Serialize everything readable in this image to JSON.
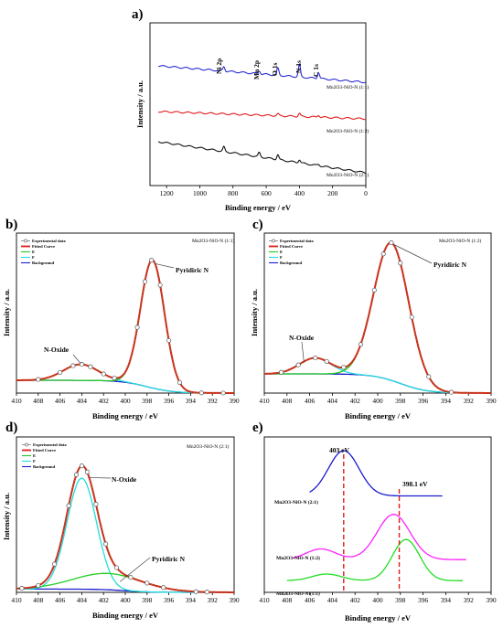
{
  "panels": [
    {
      "id": "a",
      "label": "a)",
      "xlabel": "Binding energy / eV",
      "ylabel": "Intensity / a.u.",
      "xlim": [
        1300,
        0
      ],
      "xticks": [
        1200,
        1000,
        800,
        600,
        400,
        200,
        0
      ],
      "annotations": [
        "Ni 2p",
        "Mn 2p",
        "O 1s",
        "N 1s",
        "C 1s"
      ],
      "series_labels": [
        "Mn2O3-NiO-N (1:1)",
        "Mn2O3-NiO-N (1:2)",
        "Mn2O3-NiO-N (2:1)"
      ],
      "colors": [
        "#2b2bd6",
        "#e01b1b",
        "#111111"
      ]
    },
    {
      "id": "b",
      "label": "b)",
      "title": "Mn2O3-NiO-N (1:1)",
      "xlabel": "Binding energy / eV",
      "ylabel": "Intensity / a.u.",
      "xlim": [
        410,
        390
      ],
      "xticks": [
        410,
        408,
        406,
        404,
        402,
        400,
        398,
        396,
        394,
        392,
        390
      ],
      "legend": [
        "Experimental data",
        "Fitted Curve",
        "E",
        "F",
        "Background"
      ],
      "annotations": [
        "N-Oxide",
        "Pyridiric N"
      ]
    },
    {
      "id": "c",
      "label": "c)",
      "title": "Mn2O3-NiO-N (1:2)",
      "xlabel": "Binding energy / eV",
      "ylabel": "Intensity / a.u.",
      "xlim": [
        410,
        390
      ],
      "xticks": [
        410,
        408,
        406,
        404,
        402,
        400,
        398,
        396,
        394,
        392,
        390
      ],
      "legend": [
        "Experimental data",
        "Fitted Curve",
        "E",
        "F",
        "Background"
      ],
      "annotations": [
        "N-Oxide",
        "Pyridiric N"
      ]
    },
    {
      "id": "d",
      "label": "d)",
      "title": "Mn2O3-NiO-N (2:1)",
      "xlabel": "Binding energy / eV",
      "ylabel": "Intensity / a.u.",
      "xlim": [
        410,
        390
      ],
      "xticks": [
        410,
        408,
        406,
        404,
        402,
        400,
        398,
        396,
        394,
        392,
        390
      ],
      "legend": [
        "Experimental data",
        "Fitted Curve",
        "E",
        "F",
        "Background"
      ],
      "annotations": [
        "N-Oxide",
        "Pyridiric N"
      ]
    },
    {
      "id": "e",
      "label": "e)",
      "xlabel": "Binding energy / eV",
      "xlim": [
        410,
        390
      ],
      "xticks": [
        410,
        408,
        406,
        404,
        402,
        400,
        398,
        396,
        394,
        392,
        390
      ],
      "annotations": [
        "403 eV",
        "398.1 eV"
      ],
      "series_labels": [
        "Mn2O3-NiO-N (2:1)",
        "Mn2O3-NiO-N (1:2)",
        "Mn2O3-NiO-N (1:1)"
      ],
      "colors": [
        "#1a1ad0",
        "#ff22ff",
        "#22dd22"
      ]
    }
  ],
  "chart_data": [
    {
      "type": "line",
      "panel": "a",
      "x_range": [
        1250,
        0
      ],
      "series": [
        {
          "name": "Mn2O3-NiO-N (1:1)",
          "peaks": [
            [
              855,
              0.35
            ],
            [
              642,
              0.25
            ],
            [
              530,
              0.55
            ],
            [
              400,
              1.0
            ],
            [
              285,
              0.5
            ]
          ]
        },
        {
          "name": "Mn2O3-NiO-N (1:2)",
          "peaks": [
            [
              530,
              0.25
            ],
            [
              400,
              0.45
            ],
            [
              285,
              0.3
            ]
          ]
        },
        {
          "name": "Mn2O3-NiO-N (2:1)",
          "peaks": [
            [
              855,
              0.5
            ],
            [
              642,
              0.45
            ],
            [
              530,
              0.55
            ],
            [
              400,
              0.35
            ],
            [
              285,
              0.15
            ]
          ]
        }
      ]
    },
    {
      "type": "line",
      "panel": "b",
      "x_range": [
        410,
        390
      ],
      "background": {
        "left": 0.08,
        "right": 0.0,
        "center": 398
      },
      "components": [
        {
          "name": "E",
          "center": 404.1,
          "amp": 0.1,
          "sigma": 1.6
        },
        {
          "name": "F",
          "center": 397.5,
          "amp": 0.8,
          "sigma": 1.1
        }
      ],
      "markers": [
        408,
        406,
        404.8,
        404,
        403.2,
        402,
        401,
        398.9,
        398.2,
        397.6,
        396.8,
        396,
        395,
        393,
        391
      ]
    },
    {
      "type": "line",
      "panel": "c",
      "x_range": [
        410,
        390
      ],
      "background": {
        "left": 0.12,
        "right": 0.0,
        "center": 398
      },
      "components": [
        {
          "name": "E",
          "center": 405.5,
          "amp": 0.1,
          "sigma": 1.4
        },
        {
          "name": "F",
          "center": 398.8,
          "amp": 0.86,
          "sigma": 1.55
        }
      ],
      "markers": [
        408.5,
        407,
        405.5,
        404.5,
        403,
        401.5,
        400.3,
        399.5,
        398.8,
        398,
        397,
        395.5,
        393.5
      ]
    },
    {
      "type": "line",
      "panel": "d",
      "x_range": [
        410,
        390
      ],
      "background": {
        "left": 0.02,
        "right": 0.0,
        "center": 400
      },
      "components": [
        {
          "name": "E",
          "center": 404.0,
          "amp": 0.68,
          "sigma": 1.35
        },
        {
          "name": "F",
          "center": 401.6,
          "amp": 0.1,
          "sigma": 3.2
        }
      ],
      "markers": [
        409.5,
        408,
        406.5,
        405.2,
        404.5,
        404,
        403.5,
        402.7,
        401.8,
        400.8,
        399.5,
        398,
        396.5,
        393.5,
        392.5
      ]
    },
    {
      "type": "line",
      "panel": "e",
      "x_range": [
        410,
        390
      ],
      "reference_lines": [
        403,
        398.1
      ],
      "series": [
        {
          "name": "Mn2O3-NiO-N (2:1)",
          "range": [
            406,
            394.3
          ],
          "peak": 403.0,
          "amp": 0.55,
          "sigma": 1.35,
          "base": 0.05
        },
        {
          "name": "Mn2O3-NiO-N (1:2)",
          "range": [
            407.5,
            392.2
          ],
          "peak": 398.6,
          "amp": 0.55,
          "sigma": 1.45,
          "base": 0.02
        },
        {
          "name": "Mn2O3-NiO-N (1:1)",
          "range": [
            408,
            392.5
          ],
          "peak": 397.5,
          "amp": 0.5,
          "sigma": 1.2,
          "base": 0.02
        }
      ]
    }
  ]
}
